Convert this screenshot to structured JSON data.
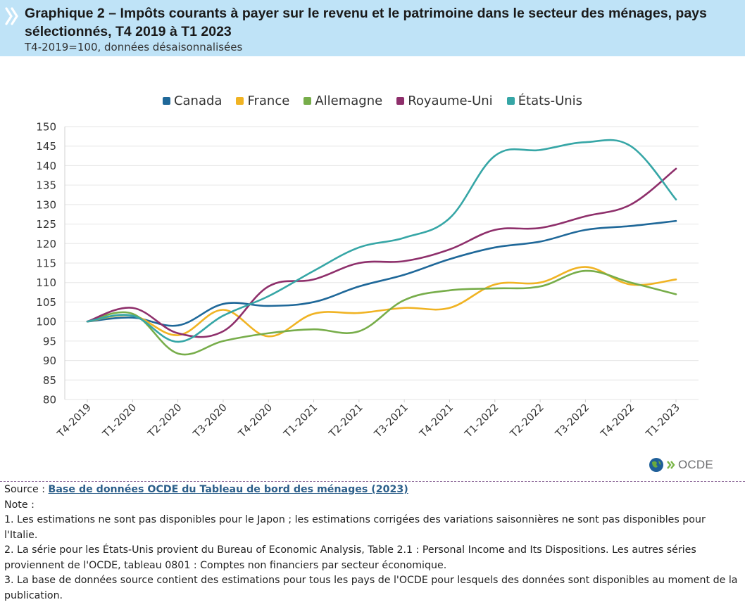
{
  "header": {
    "title": "Graphique 2 – Impôts courants à payer sur le revenu et le patrimoine dans le secteur des ménages, pays sélectionnés, T4 2019 à T1 2023",
    "subtitle": "T4-2019=100, données désaisonnalisées"
  },
  "chart_data": {
    "type": "line",
    "categories": [
      "T4-2019",
      "T1-2020",
      "T2-2020",
      "T3-2020",
      "T4-2020",
      "T1-2021",
      "T2-2021",
      "T3-2021",
      "T4-2021",
      "T1-2022",
      "T2-2022",
      "T3-2022",
      "T4-2022",
      "T1-2023"
    ],
    "series": [
      {
        "name": "Canada",
        "color": "#1f6899",
        "values": [
          100,
          101,
          99,
          104.5,
          104,
          105,
          109,
          112,
          116,
          119,
          120.5,
          123.5,
          124.5,
          125.8
        ]
      },
      {
        "name": "France",
        "color": "#f0b323",
        "values": [
          100,
          101.5,
          96.5,
          103,
          96.2,
          102,
          102.2,
          103.5,
          103.5,
          109.5,
          110,
          114,
          109.5,
          110.8
        ]
      },
      {
        "name": "Allemagne",
        "color": "#77ad4a",
        "values": [
          100,
          102,
          91.8,
          95,
          97,
          98,
          97.5,
          105.5,
          108,
          108.5,
          109,
          113,
          110,
          107
        ]
      },
      {
        "name": "Royaume-Uni",
        "color": "#8e2f6b",
        "values": [
          100,
          103.5,
          97,
          97.5,
          109,
          110.8,
          115,
          115.5,
          118.5,
          123.5,
          124,
          127,
          130,
          139.2
        ]
      },
      {
        "name": "États-Unis",
        "color": "#36a6a6",
        "values": [
          100,
          101.5,
          94.8,
          101.5,
          106.5,
          113,
          119,
          121.5,
          126.5,
          142.5,
          144,
          146,
          145,
          131.3
        ]
      }
    ],
    "yticks": [
      "150",
      "145",
      "140",
      "135",
      "130",
      "125",
      "120",
      "115",
      "110",
      "105",
      "100",
      "95",
      "90",
      "85",
      "80"
    ],
    "ylim": [
      80,
      150
    ],
    "grid": true,
    "legend_position": "top-center"
  },
  "logo": {
    "text": "OCDE"
  },
  "notes": {
    "source_label": "Source :",
    "source_link": "Base de données OCDE du Tableau de bord des ménages (2023)",
    "note_label": "Note :",
    "note1": "1. Les estimations ne sont pas disponibles pour le Japon ; les estimations corrigées des variations saisonnières ne sont pas disponibles pour l'Italie.",
    "note2": "2. La série pour les États-Unis provient du Bureau of Economic Analysis, Table 2.1 : Personal Income and Its Dispositions. Les autres séries proviennent de l'OCDE, tableau 0801 : Comptes non financiers par secteur économique.",
    "note3": "3. La base de données source contient des estimations pour tous les pays de l'OCDE pour lesquels des données sont disponibles au moment de la publication."
  },
  "colors": {
    "header_bg": "#bfe3f7",
    "chevron": "#ffffff",
    "link": "#2c5f8a",
    "divider": "#8e6a9a"
  }
}
